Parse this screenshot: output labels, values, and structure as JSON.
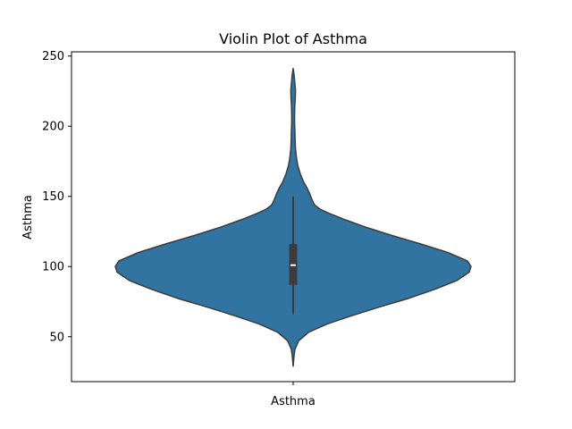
{
  "chart_data": {
    "type": "violin",
    "title": "Violin Plot of Asthma",
    "xlabel": "",
    "ylabel": "Asthma",
    "categories": [
      "Asthma"
    ],
    "ylim": [
      18,
      253
    ],
    "yticks": [
      50,
      100,
      150,
      200,
      250
    ],
    "grid": false,
    "color": "#3274a1",
    "edge_color": "#3b3b3b",
    "box": {
      "min": 66,
      "q1": 87,
      "median": 101,
      "q3": 116,
      "max": 150
    },
    "density_profile": [
      {
        "y": 29,
        "w": 0.0
      },
      {
        "y": 35,
        "w": 0.004
      },
      {
        "y": 41,
        "w": 0.01
      },
      {
        "y": 47,
        "w": 0.03
      },
      {
        "y": 53,
        "w": 0.085
      },
      {
        "y": 59,
        "w": 0.19
      },
      {
        "y": 65,
        "w": 0.33
      },
      {
        "y": 71,
        "w": 0.48
      },
      {
        "y": 77,
        "w": 0.64
      },
      {
        "y": 84,
        "w": 0.8
      },
      {
        "y": 90,
        "w": 0.92
      },
      {
        "y": 96,
        "w": 0.99
      },
      {
        "y": 100,
        "w": 1.0
      },
      {
        "y": 104,
        "w": 0.98
      },
      {
        "y": 110,
        "w": 0.87
      },
      {
        "y": 116,
        "w": 0.72
      },
      {
        "y": 122,
        "w": 0.56
      },
      {
        "y": 128,
        "w": 0.41
      },
      {
        "y": 134,
        "w": 0.28
      },
      {
        "y": 138,
        "w": 0.2
      },
      {
        "y": 141,
        "w": 0.15
      },
      {
        "y": 144,
        "w": 0.12
      },
      {
        "y": 148,
        "w": 0.105
      },
      {
        "y": 152,
        "w": 0.093
      },
      {
        "y": 156,
        "w": 0.078
      },
      {
        "y": 160,
        "w": 0.06
      },
      {
        "y": 166,
        "w": 0.04
      },
      {
        "y": 172,
        "w": 0.026
      },
      {
        "y": 178,
        "w": 0.018
      },
      {
        "y": 184,
        "w": 0.013
      },
      {
        "y": 190,
        "w": 0.011
      },
      {
        "y": 196,
        "w": 0.01
      },
      {
        "y": 202,
        "w": 0.008
      },
      {
        "y": 208,
        "w": 0.008
      },
      {
        "y": 214,
        "w": 0.009
      },
      {
        "y": 220,
        "w": 0.012
      },
      {
        "y": 226,
        "w": 0.013
      },
      {
        "y": 230,
        "w": 0.01
      },
      {
        "y": 236,
        "w": 0.006
      },
      {
        "y": 241,
        "w": 0.0
      }
    ]
  }
}
